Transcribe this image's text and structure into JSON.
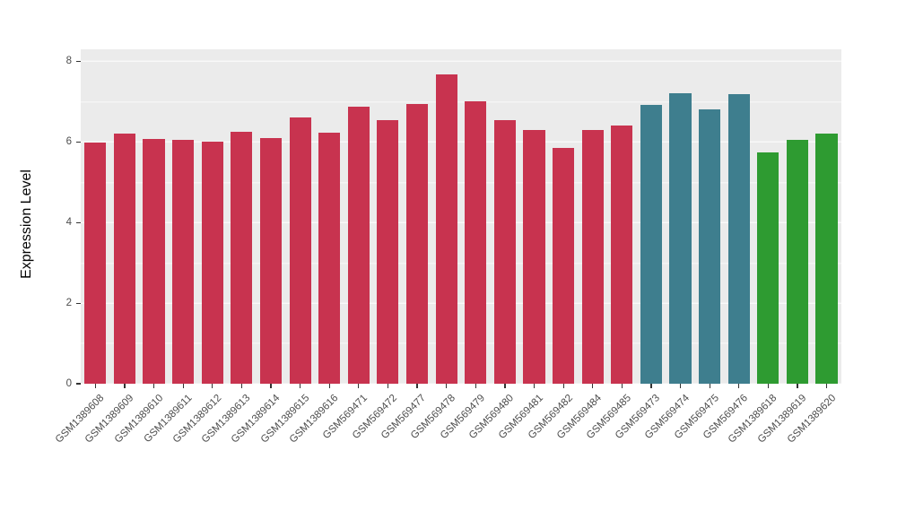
{
  "chart_data": {
    "type": "bar",
    "title": "",
    "xlabel": "",
    "ylabel": "Expression Level",
    "ylim": [
      0,
      8.3
    ],
    "yticks": [
      0,
      2,
      4,
      6,
      8
    ],
    "yminor": [
      1,
      3,
      5,
      7
    ],
    "grid": "on",
    "legend": "none",
    "panel_background": "#EBEBEB",
    "categories": [
      "GSM1389608",
      "GSM1389609",
      "GSM1389610",
      "GSM1389611",
      "GSM1389612",
      "GSM1389613",
      "GSM1389614",
      "GSM1389615",
      "GSM1389616",
      "GSM569471",
      "GSM569472",
      "GSM569477",
      "GSM569478",
      "GSM569479",
      "GSM569480",
      "GSM569481",
      "GSM569482",
      "GSM569484",
      "GSM569485",
      "GSM569473",
      "GSM569474",
      "GSM569475",
      "GSM569476",
      "GSM1389618",
      "GSM1389619",
      "GSM1389620"
    ],
    "values": [
      5.98,
      6.2,
      6.08,
      6.05,
      6.0,
      6.25,
      6.1,
      6.6,
      6.22,
      6.88,
      6.55,
      6.95,
      7.68,
      7.0,
      6.55,
      6.3,
      5.85,
      6.3,
      6.42,
      6.92,
      7.2,
      6.8,
      7.18,
      5.75,
      6.05,
      6.2
    ],
    "groups": [
      "red",
      "red",
      "red",
      "red",
      "red",
      "red",
      "red",
      "red",
      "red",
      "red",
      "red",
      "red",
      "red",
      "red",
      "red",
      "red",
      "red",
      "red",
      "red",
      "teal",
      "teal",
      "teal",
      "teal",
      "green",
      "green",
      "green"
    ],
    "palette": {
      "red": "#C8334F",
      "teal": "#3E7E8E",
      "green": "#2E9B31"
    }
  }
}
